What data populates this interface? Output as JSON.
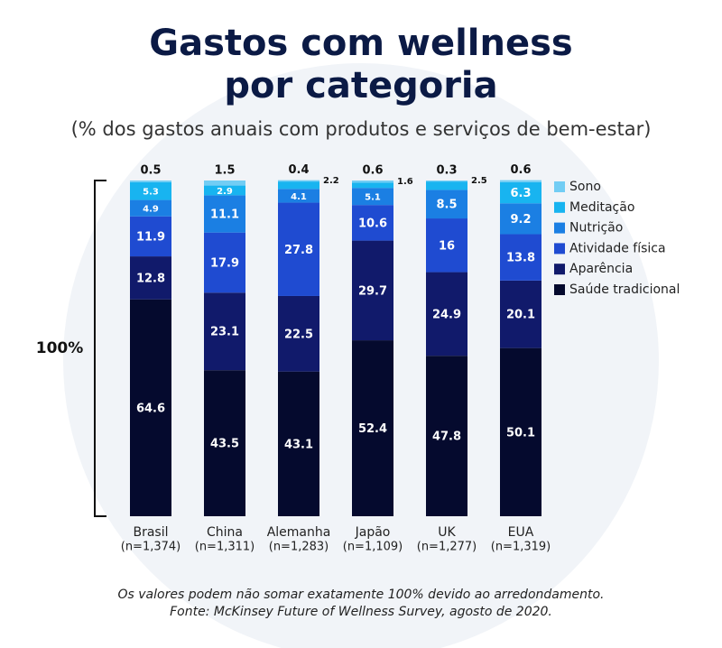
{
  "chart_data": {
    "type": "stacked_bar",
    "title": [
      "Gastos com wellness",
      "por categoria"
    ],
    "subtitle": "(% dos gastos anuais com produtos e serviços de bem-estar)",
    "categories": [
      "Brasil",
      "China",
      "Alemanha",
      "Japão",
      "UK",
      "EUA"
    ],
    "sample_sizes": [
      "(n=1,374)",
      "(n=1,311)",
      "(n=1,283)",
      "(n=1,109)",
      "(n=1,277)",
      "(n=1,319)"
    ],
    "bracket_label": "100%",
    "ylim": [
      0,
      100
    ],
    "series": [
      {
        "name": "Saúde tradicional",
        "color": "#050a2e",
        "values": [
          64.6,
          43.5,
          43.1,
          52.4,
          47.8,
          50.1
        ]
      },
      {
        "name": "Aparência",
        "color": "#111a6b",
        "values": [
          12.8,
          23.1,
          22.5,
          29.7,
          24.9,
          20.1
        ]
      },
      {
        "name": "Atividade física",
        "color": "#1f4bd1",
        "values": [
          11.9,
          17.9,
          27.8,
          10.6,
          16.0,
          13.8
        ]
      },
      {
        "name": "Nutrição",
        "color": "#1b7fe3",
        "values": [
          4.9,
          11.1,
          4.1,
          5.1,
          8.5,
          9.2
        ]
      },
      {
        "name": "Meditação",
        "color": "#18b4f0",
        "values": [
          5.3,
          2.9,
          2.2,
          1.6,
          2.5,
          6.3
        ]
      },
      {
        "name": "Sono",
        "color": "#72cdf4",
        "values": [
          0.5,
          1.5,
          0.4,
          0.6,
          0.3,
          0.6
        ]
      }
    ],
    "notes": [
      "Os valores podem não somar exatamente 100% devido ao arredondamento.",
      "Fonte: McKinsey Future of Wellness Survey, agosto de 2020."
    ]
  }
}
